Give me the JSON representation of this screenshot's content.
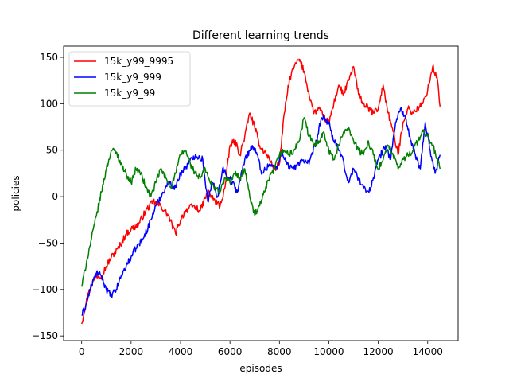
{
  "chart_data": {
    "type": "line",
    "title": "Different learning trends",
    "xlabel": "episodes",
    "ylabel": "policies",
    "xlim": [
      -730,
      15230
    ],
    "ylim": [
      -155,
      162
    ],
    "xticks": [
      0,
      2000,
      4000,
      6000,
      8000,
      10000,
      12000,
      14000
    ],
    "yticks": [
      -150,
      -100,
      -50,
      0,
      50,
      100,
      150
    ],
    "grid": false,
    "legend": "top-left",
    "series": [
      {
        "name": "15k_y99_9995",
        "color": "#ff0000",
        "x": [
          0,
          200,
          400,
          600,
          800,
          1000,
          1200,
          1500,
          1800,
          2000,
          2300,
          2600,
          2900,
          3200,
          3500,
          3800,
          4000,
          4200,
          4500,
          4800,
          5100,
          5400,
          5600,
          5800,
          6000,
          6200,
          6400,
          6600,
          6800,
          7000,
          7200,
          7500,
          7800,
          8000,
          8200,
          8400,
          8600,
          8800,
          9000,
          9200,
          9400,
          9600,
          9800,
          10000,
          10200,
          10400,
          10600,
          10800,
          11000,
          11200,
          11400,
          11600,
          11800,
          12000,
          12200,
          12400,
          12600,
          12800,
          13000,
          13200,
          13400,
          13600,
          13800,
          14000,
          14200,
          14400,
          14500
        ],
        "y": [
          -137,
          -110,
          -95,
          -85,
          -85,
          -75,
          -65,
          -55,
          -40,
          -35,
          -30,
          -15,
          -5,
          -10,
          -20,
          -40,
          -25,
          -15,
          -10,
          -15,
          5,
          -5,
          -10,
          10,
          55,
          60,
          45,
          65,
          90,
          75,
          55,
          45,
          30,
          35,
          90,
          125,
          140,
          148,
          135,
          110,
          90,
          95,
          85,
          80,
          100,
          120,
          110,
          125,
          140,
          110,
          100,
          95,
          90,
          95,
          120,
          90,
          70,
          45,
          80,
          95,
          90,
          95,
          100,
          115,
          140,
          125,
          97
        ]
      },
      {
        "name": "15k_y9_999",
        "color": "#0000ff",
        "x": [
          0,
          200,
          400,
          600,
          800,
          1000,
          1200,
          1400,
          1600,
          1800,
          2000,
          2200,
          2500,
          2800,
          3000,
          3200,
          3500,
          3800,
          4000,
          4300,
          4600,
          4900,
          5100,
          5300,
          5500,
          5700,
          6000,
          6300,
          6600,
          6900,
          7100,
          7300,
          7600,
          7900,
          8100,
          8300,
          8600,
          8900,
          9200,
          9500,
          9700,
          10000,
          10200,
          10500,
          10800,
          11000,
          11200,
          11500,
          11700,
          12000,
          12300,
          12500,
          12700,
          12900,
          13100,
          13300,
          13500,
          13700,
          13900,
          14100,
          14300,
          14500
        ],
        "y": [
          -128,
          -115,
          -95,
          -82,
          -85,
          -100,
          -107,
          -100,
          -85,
          -75,
          -65,
          -55,
          -45,
          -25,
          -10,
          0,
          15,
          10,
          25,
          35,
          45,
          40,
          -5,
          15,
          0,
          30,
          20,
          5,
          40,
          55,
          45,
          25,
          35,
          30,
          50,
          35,
          30,
          40,
          35,
          60,
          85,
          80,
          60,
          45,
          15,
          30,
          20,
          5,
          10,
          40,
          55,
          40,
          80,
          95,
          85,
          60,
          45,
          30,
          80,
          50,
          25,
          45
        ]
      },
      {
        "name": "15k_y9_99",
        "color": "#008000",
        "x": [
          0,
          200,
          400,
          600,
          800,
          1000,
          1200,
          1400,
          1600,
          1800,
          2000,
          2200,
          2400,
          2600,
          2800,
          3000,
          3200,
          3400,
          3600,
          3800,
          4000,
          4200,
          4400,
          4600,
          4800,
          5000,
          5200,
          5400,
          5600,
          5800,
          6000,
          6200,
          6400,
          6600,
          6800,
          7000,
          7200,
          7400,
          7600,
          7800,
          8000,
          8200,
          8400,
          8600,
          8800,
          9000,
          9200,
          9400,
          9600,
          9800,
          10000,
          10200,
          10400,
          10600,
          10800,
          11000,
          11200,
          11400,
          11600,
          11800,
          12000,
          12200,
          12400,
          12600,
          12800,
          13000,
          13200,
          13400,
          13600,
          13800,
          14000,
          14200,
          14400,
          14500
        ],
        "y": [
          -97,
          -70,
          -45,
          -20,
          5,
          30,
          50,
          48,
          35,
          25,
          15,
          30,
          25,
          10,
          0,
          15,
          30,
          20,
          10,
          25,
          45,
          50,
          35,
          25,
          20,
          30,
          15,
          10,
          5,
          20,
          15,
          25,
          20,
          30,
          0,
          -20,
          -10,
          5,
          20,
          30,
          45,
          50,
          45,
          50,
          60,
          85,
          65,
          55,
          60,
          70,
          50,
          40,
          55,
          70,
          75,
          60,
          50,
          45,
          60,
          45,
          30,
          40,
          55,
          45,
          30,
          40,
          45,
          50,
          60,
          70,
          65,
          55,
          40,
          30
        ]
      }
    ]
  }
}
